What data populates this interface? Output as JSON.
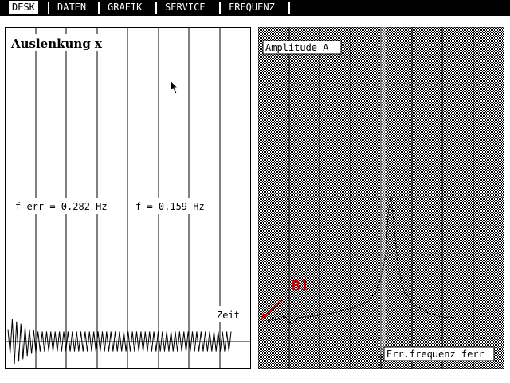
{
  "menu": {
    "items": [
      {
        "label": "DESK",
        "active": true
      },
      {
        "label": "DATEN",
        "active": false
      },
      {
        "label": "GRAFIK",
        "active": false
      },
      {
        "label": "SERVICE",
        "active": false
      },
      {
        "label": "FREQUENZ",
        "active": false
      }
    ]
  },
  "left_chart": {
    "title": "Auslenkung x",
    "freq_err_label": "f err = 0.282 Hz",
    "freq_label": "f = 0.159 Hz",
    "time_label": "Zeit"
  },
  "right_chart": {
    "title": "Amplitude A",
    "xlabel": "Err.frequenz ferr",
    "marker_label": "B1",
    "marker_color": "#cc0000"
  },
  "chart_data": [
    {
      "type": "line",
      "title": "Auslenkung x",
      "xlabel": "Zeit",
      "ylabel": "",
      "grid": true,
      "annotations": [
        "f err = 0.282 Hz",
        "f = 0.159 Hz"
      ],
      "series": [
        {
          "values": [
            0.55,
            -1,
            0.9,
            -0.8,
            0.65,
            -0.55,
            0.5,
            -0.45,
            0.45,
            -0.45,
            0.45,
            -0.45,
            0.45,
            -0.45,
            0.45,
            -0.45,
            0.45,
            -0.45,
            0.45,
            -0.45
          ]
        }
      ]
    },
    {
      "type": "line",
      "title": "Amplitude A",
      "xlabel": "Err.frequenz ferr",
      "ylabel": "",
      "grid": true,
      "annotations": [
        "B1"
      ],
      "series": [
        {
          "x": [
            0,
            0.07,
            0.1,
            0.13,
            0.17,
            0.25,
            0.35,
            0.45,
            0.52,
            0.56,
            0.59,
            0.61,
            0.62,
            0.635,
            0.65,
            0.67,
            0.7,
            0.75,
            0.82,
            0.9,
            0.96
          ],
          "values": [
            0.02,
            0.03,
            0.05,
            0.0,
            0.04,
            0.05,
            0.07,
            0.1,
            0.14,
            0.2,
            0.3,
            0.45,
            0.68,
            0.78,
            0.6,
            0.35,
            0.2,
            0.12,
            0.07,
            0.04,
            0.04
          ]
        }
      ]
    }
  ]
}
